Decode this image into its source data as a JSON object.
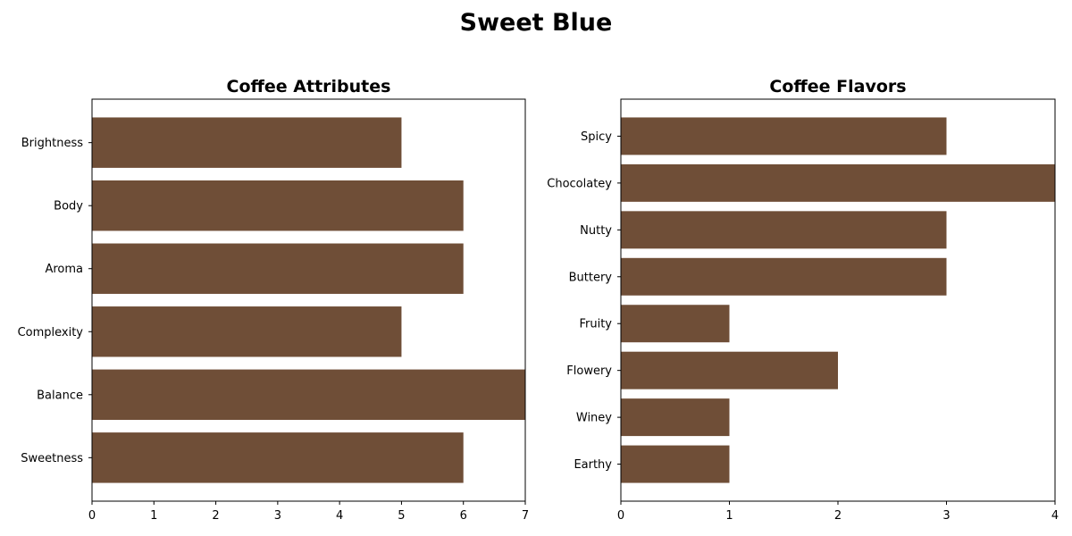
{
  "title": "Sweet Blue",
  "colors": {
    "bar": "#6f4e37",
    "frame": "#000000",
    "background": "#ffffff"
  },
  "chart_data": [
    {
      "type": "bar",
      "orientation": "horizontal",
      "title": "Coffee Attributes",
      "categories": [
        "Brightness",
        "Body",
        "Aroma",
        "Complexity",
        "Balance",
        "Sweetness"
      ],
      "values": [
        5,
        6,
        6,
        5,
        7,
        6
      ],
      "xlim": [
        0,
        7
      ],
      "xticks": [
        0,
        1,
        2,
        3,
        4,
        5,
        6,
        7
      ],
      "xlabel": "",
      "ylabel": "",
      "grid": false
    },
    {
      "type": "bar",
      "orientation": "horizontal",
      "title": "Coffee Flavors",
      "categories": [
        "Spicy",
        "Chocolatey",
        "Nutty",
        "Buttery",
        "Fruity",
        "Flowery",
        "Winey",
        "Earthy"
      ],
      "values": [
        3,
        4,
        3,
        3,
        1,
        2,
        1,
        1
      ],
      "xlim": [
        0,
        4
      ],
      "xticks": [
        0,
        1,
        2,
        3,
        4
      ],
      "xlabel": "",
      "ylabel": "",
      "grid": false
    }
  ]
}
